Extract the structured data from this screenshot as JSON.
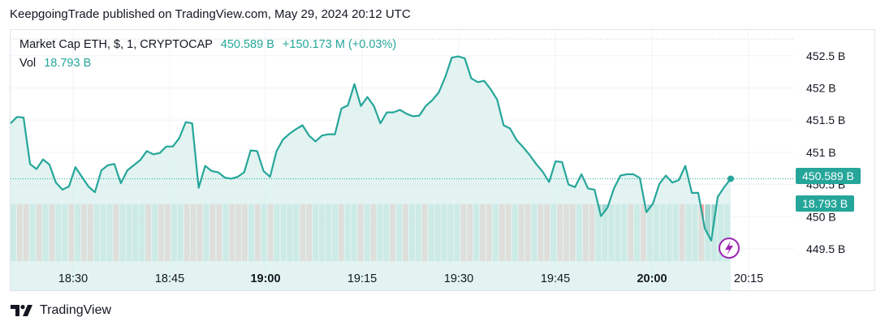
{
  "header": {
    "published": "KeepgoingTrade published on TradingView.com, May 29, 2024 20:12 UTC"
  },
  "legend": {
    "symbol": "Market Cap ETH, $, 1, CRYPTOCAP",
    "price": "450.589 B",
    "change": "+150.173 M (+0.03%)",
    "vol_label": "Vol",
    "vol_value": "18.793 B"
  },
  "badges": {
    "price": "450.589 B",
    "volume": "18.793 B"
  },
  "footer": {
    "brand": "TradingView"
  },
  "colors": {
    "line": "#26a69a",
    "area": "#d8efec",
    "vol_up": "#a8d9d2",
    "vol_down": "#eeaaa7",
    "accent": "#9c27b0"
  },
  "chart_data": {
    "type": "area",
    "title": "Market Cap ETH, $, 1, CRYPTOCAP",
    "xlabel": "",
    "ylabel": "",
    "y_ticks": [
      "452.5 B",
      "452 B",
      "451.5 B",
      "451 B",
      "450.5 B",
      "450 B",
      "449.5 B"
    ],
    "x_ticks": [
      "18:30",
      "18:45",
      "19:00",
      "19:15",
      "19:30",
      "19:45",
      "20:00",
      "20:15"
    ],
    "x_ticks_bold": [
      "19:00",
      "20:00"
    ],
    "ylim": [
      449.4,
      452.7
    ],
    "x_start": "18:23",
    "x_end": "20:12",
    "series": [
      {
        "name": "",
        "values": [
          451.45,
          451.55,
          451.54,
          450.82,
          450.74,
          450.89,
          450.81,
          450.53,
          450.42,
          450.47,
          450.77,
          450.62,
          450.47,
          450.38,
          450.72,
          450.8,
          450.82,
          450.52,
          450.72,
          450.8,
          450.88,
          451.02,
          450.97,
          450.99,
          451.09,
          451.09,
          451.22,
          451.47,
          451.45,
          450.45,
          450.79,
          450.71,
          450.69,
          450.61,
          450.59,
          450.62,
          450.69,
          451.03,
          451.02,
          450.71,
          450.62,
          451.02,
          451.2,
          451.29,
          451.36,
          451.42,
          451.26,
          451.17,
          451.26,
          451.28,
          451.28,
          451.68,
          451.73,
          452.06,
          451.72,
          451.86,
          451.72,
          451.45,
          451.62,
          451.62,
          451.66,
          451.6,
          451.56,
          451.57,
          451.72,
          451.81,
          451.93,
          452.17,
          452.47,
          452.49,
          452.46,
          452.15,
          452.09,
          452.11,
          451.98,
          451.82,
          451.42,
          451.37,
          451.19,
          451.08,
          450.96,
          450.82,
          450.7,
          450.54,
          450.86,
          450.85,
          450.5,
          450.46,
          450.66,
          450.44,
          450.42,
          450.01,
          450.14,
          450.44,
          450.64,
          450.66,
          450.66,
          450.6,
          450.07,
          450.2,
          450.51,
          450.64,
          450.53,
          450.57,
          450.79,
          450.37,
          450.37,
          449.82,
          449.63,
          450.31,
          450.46,
          450.59
        ]
      }
    ],
    "volume": {
      "name": "Vol",
      "up": [
        1,
        0,
        0,
        1,
        0,
        1,
        0,
        1,
        1,
        0,
        1,
        0,
        0,
        1,
        1,
        1,
        0,
        1,
        1,
        1,
        1,
        0,
        1,
        0,
        0,
        1,
        1,
        0,
        0,
        0,
        1,
        0,
        0,
        1,
        0,
        0,
        0,
        1,
        0,
        1,
        0,
        1,
        1,
        1,
        1,
        0,
        0,
        1,
        1,
        1,
        1,
        0,
        1,
        1,
        0,
        1,
        0,
        1,
        1,
        0,
        1,
        0,
        1,
        1,
        0,
        1,
        1,
        1,
        1,
        1,
        0,
        0,
        1,
        0,
        0,
        1,
        0,
        0,
        1,
        0,
        0,
        1,
        0,
        0,
        1,
        0,
        0,
        0,
        1,
        0,
        0,
        1,
        1,
        1,
        1,
        1,
        0,
        1,
        0,
        1,
        1,
        1,
        1,
        1,
        0,
        1,
        1,
        0,
        1,
        1,
        1,
        1
      ]
    },
    "grid": true,
    "legend_position": "top-left"
  }
}
